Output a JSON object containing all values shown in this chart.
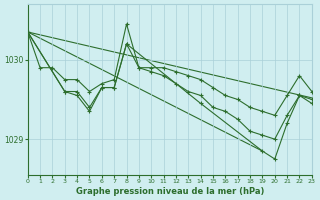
{
  "background_color": "#d0eef0",
  "grid_color": "#aad0d8",
  "line_color": "#2d6e2d",
  "xlabel": "Graphe pression niveau de la mer (hPa)",
  "xlim": [
    0,
    23
  ],
  "ylim": [
    1028.55,
    1030.7
  ],
  "yticks": [
    1029,
    1030
  ],
  "xticks": [
    0,
    1,
    2,
    3,
    4,
    5,
    6,
    7,
    8,
    9,
    10,
    11,
    12,
    13,
    14,
    15,
    16,
    17,
    18,
    19,
    20,
    21,
    22,
    23
  ],
  "series1_x": [
    0,
    1,
    2,
    3,
    4,
    5,
    6,
    7,
    8,
    9,
    10,
    11,
    12,
    13,
    14,
    15,
    16,
    17,
    18,
    19,
    20,
    21,
    22,
    23
  ],
  "series1_y": [
    1030.35,
    1029.9,
    1029.9,
    1029.75,
    1029.75,
    1029.6,
    1029.7,
    1029.75,
    1030.45,
    1029.9,
    1029.9,
    1029.9,
    1029.85,
    1029.8,
    1029.75,
    1029.65,
    1029.55,
    1029.5,
    1029.4,
    1029.35,
    1029.3,
    1029.55,
    1029.8,
    1029.6
  ],
  "series2_x": [
    0,
    3,
    4,
    5,
    6,
    7,
    8,
    9,
    10,
    11,
    12,
    13,
    14,
    15,
    16,
    17,
    18,
    19,
    20,
    21,
    22,
    23
  ],
  "series2_y": [
    1030.35,
    1029.6,
    1029.6,
    1029.4,
    1029.65,
    1029.65,
    1030.2,
    1029.9,
    1029.85,
    1029.8,
    1029.7,
    1029.6,
    1029.55,
    1029.4,
    1029.35,
    1029.25,
    1029.1,
    1029.05,
    1029.0,
    1029.3,
    1029.55,
    1029.5
  ],
  "series3_x": [
    0,
    3,
    4,
    5,
    6,
    7,
    8,
    14,
    19,
    20,
    21,
    22,
    23
  ],
  "series3_y": [
    1030.35,
    1029.6,
    1029.55,
    1029.35,
    1029.65,
    1029.65,
    1030.2,
    1029.45,
    1028.85,
    1028.75,
    1029.2,
    1029.55,
    1029.45
  ],
  "trend_x": [
    0,
    23
  ],
  "trend_y": [
    1030.35,
    1029.52
  ],
  "trend2_x": [
    0,
    19
  ],
  "trend2_y": [
    1030.35,
    1028.85
  ]
}
